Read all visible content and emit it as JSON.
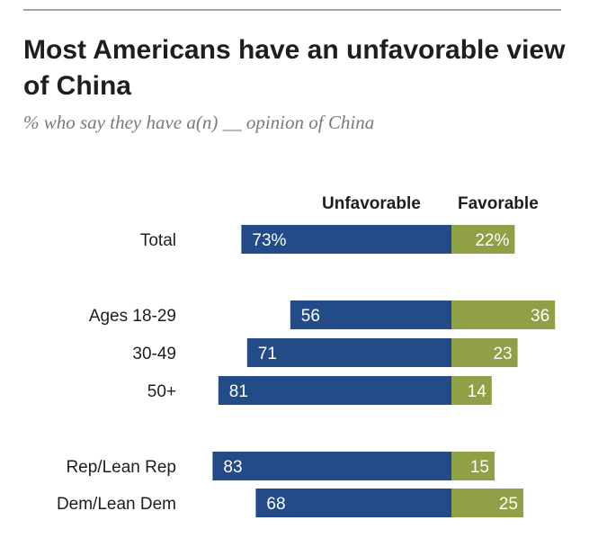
{
  "chart_data": {
    "type": "bar",
    "title": "Most Americans have an unfavorable view of China",
    "subtitle": "% who say they have a(n) __ opinion of China",
    "series": [
      {
        "name": "Unfavorable",
        "color": "#224b87"
      },
      {
        "name": "Favorable",
        "color": "#90a046"
      }
    ],
    "rows": [
      {
        "category": "Total",
        "unfavorable": 73,
        "favorable": 22,
        "unfavorable_label": "73%",
        "favorable_label": "22%"
      },
      {
        "category": "Ages 18-29",
        "unfavorable": 56,
        "favorable": 36,
        "unfavorable_label": "56",
        "favorable_label": "36"
      },
      {
        "category": "30-49",
        "unfavorable": 71,
        "favorable": 23,
        "unfavorable_label": "71",
        "favorable_label": "23"
      },
      {
        "category": "50+",
        "unfavorable": 81,
        "favorable": 14,
        "unfavorable_label": "81",
        "favorable_label": "14"
      },
      {
        "category": "Rep/Lean Rep",
        "unfavorable": 83,
        "favorable": 15,
        "unfavorable_label": "83",
        "favorable_label": "15"
      },
      {
        "category": "Dem/Lean Dem",
        "unfavorable": 68,
        "favorable": 25,
        "unfavorable_label": "68",
        "favorable_label": "25"
      }
    ]
  }
}
